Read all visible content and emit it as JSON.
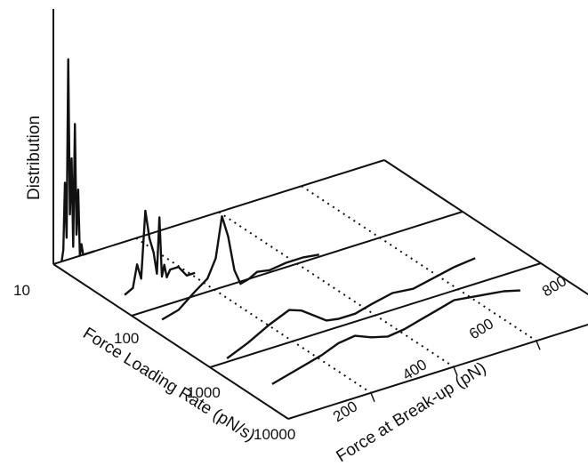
{
  "chart_data": {
    "type": "line",
    "zlabel": "Distribution",
    "xlabel": "Force at Break-up (pN)",
    "ylabel": "Force Loading Rate (pN/s)",
    "x_ticks": [
      "200",
      "400",
      "600",
      "800"
    ],
    "y_ticks": [
      "10",
      "100",
      "1000",
      "10000"
    ],
    "x_axis_values": [
      200,
      400,
      600,
      800
    ],
    "y_axis_values": [
      10,
      100,
      1000,
      10000
    ],
    "xlim": [
      0,
      800
    ],
    "ylim": [
      10,
      10000
    ],
    "y_scale": "log",
    "series": [
      {
        "loading_rate": 10,
        "x": [
          20,
          24,
          28,
          32,
          36,
          40,
          44,
          48,
          52,
          56,
          60,
          64,
          68,
          72,
          80,
          100
        ],
        "y": [
          0,
          0.05,
          0.35,
          0.1,
          0.9,
          0.2,
          0.45,
          0.05,
          0.6,
          0.1,
          0.3,
          0,
          0.05,
          0,
          0,
          0
        ]
      },
      {
        "loading_rate": 50,
        "x": [
          40,
          60,
          70,
          80,
          90,
          100,
          110,
          118,
          124,
          130,
          136,
          142,
          150,
          170,
          190,
          210
        ],
        "y": [
          0,
          0.02,
          0.12,
          0.05,
          0.35,
          0.22,
          0.15,
          0.05,
          0.3,
          0.03,
          0.08,
          0.02,
          0.05,
          0.05,
          0,
          0
        ]
      },
      {
        "loading_rate": 150,
        "x": [
          40,
          80,
          120,
          150,
          170,
          185,
          200,
          215,
          230,
          250,
          270,
          300,
          340,
          380,
          420
        ],
        "y": [
          0,
          0.02,
          0.08,
          0.12,
          0.2,
          0.38,
          0.28,
          0.12,
          0.05,
          0.06,
          0.08,
          0.07,
          0.08,
          0.08,
          0.07
        ]
      },
      {
        "loading_rate": 900,
        "x": [
          50,
          100,
          150,
          200,
          230,
          260,
          290,
          320,
          360,
          400,
          450,
          500,
          550,
          600,
          650
        ],
        "y": [
          0,
          0.04,
          0.09,
          0.13,
          0.11,
          0.07,
          0.03,
          0.02,
          0.02,
          0.04,
          0.06,
          0.05,
          0.07,
          0.09,
          0.1
        ]
      },
      {
        "loading_rate": 3000,
        "x": [
          60,
          120,
          180,
          220,
          260,
          300,
          340,
          380,
          420,
          460,
          500,
          540,
          580,
          620,
          660
        ],
        "y": [
          0,
          0.03,
          0.06,
          0.09,
          0.1,
          0.07,
          0.05,
          0.06,
          0.08,
          0.1,
          0.12,
          0.11,
          0.1,
          0.09,
          0.07
        ]
      }
    ]
  }
}
